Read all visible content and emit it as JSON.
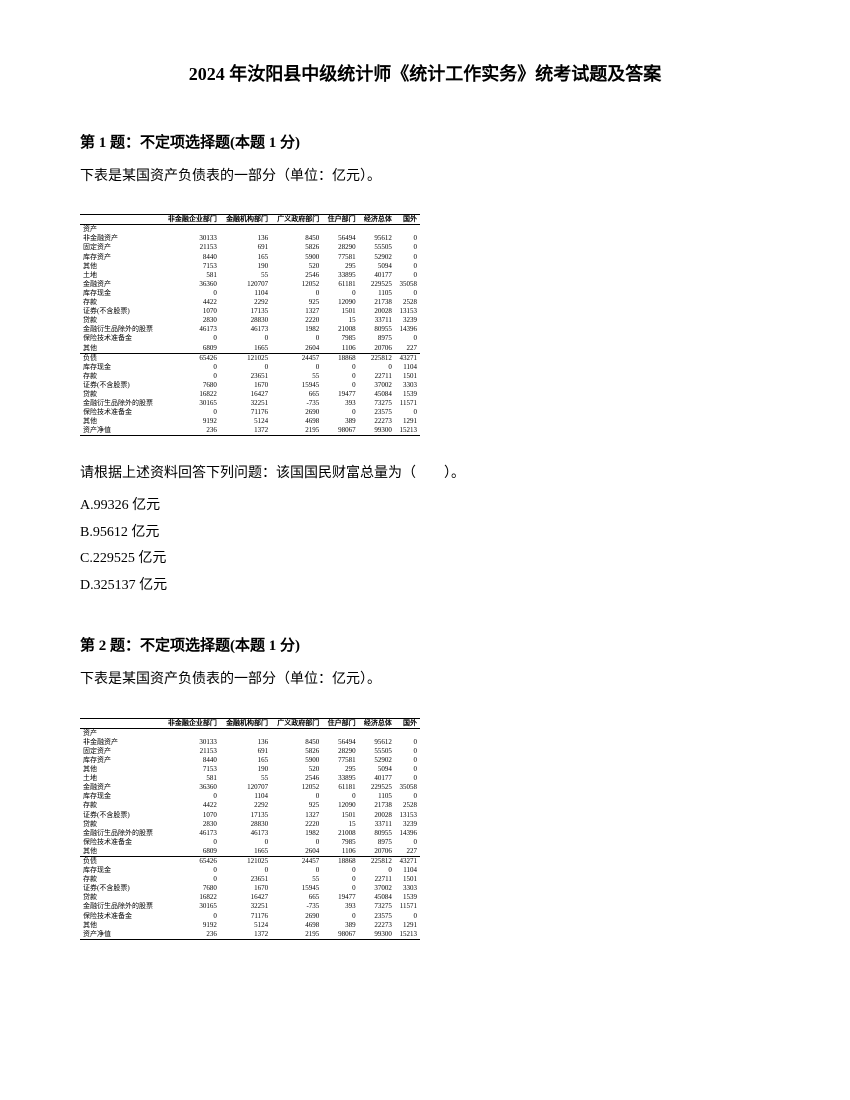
{
  "title": "2024 年汝阳县中级统计师《统计工作实务》统考试题及答案",
  "q1": {
    "header": "第 1 题：不定项选择题(本题 1 分)",
    "text": "下表是某国资产负债表的一部分（单位：亿元）。",
    "prompt": "请根据上述资料回答下列问题：该国国民财富总量为（　　）。",
    "optA": "A.99326 亿元",
    "optB": "B.95612 亿元",
    "optC": "C.229525 亿元",
    "optD": "D.325137 亿元"
  },
  "q2": {
    "header": "第 2 题：不定项选择题(本题 1 分)",
    "text": "下表是某国资产负债表的一部分（单位：亿元）。"
  },
  "table": {
    "headers": [
      "",
      "非金融企业部门",
      "金融机构部门",
      "广义政府部门",
      "住户部门",
      "经济总体",
      "国外"
    ],
    "rows": [
      [
        "资产",
        "",
        "",
        "",
        "",
        "",
        ""
      ],
      [
        "非金融资产",
        "30133",
        "136",
        "8450",
        "56494",
        "95612",
        "0"
      ],
      [
        "固定资产",
        "21153",
        "691",
        "5826",
        "28290",
        "55505",
        "0"
      ],
      [
        "库存资产",
        "8440",
        "165",
        "5900",
        "77581",
        "52902",
        "0"
      ],
      [
        "其他",
        "7153",
        "190",
        "520",
        "295",
        "5094",
        "0"
      ],
      [
        "土地",
        "581",
        "55",
        "2546",
        "33895",
        "40177",
        "0"
      ],
      [
        "金融资产",
        "36360",
        "120707",
        "12052",
        "61181",
        "229525",
        "35058"
      ],
      [
        "库存现金",
        "0",
        "1104",
        "0",
        "0",
        "1105",
        "0"
      ],
      [
        "存款",
        "4422",
        "2292",
        "925",
        "12090",
        "21738",
        "2528"
      ],
      [
        "证券(不含股票)",
        "1070",
        "17135",
        "1327",
        "1501",
        "20028",
        "13153"
      ],
      [
        "贷款",
        "2830",
        "28830",
        "2220",
        "15",
        "33711",
        "3239"
      ],
      [
        "金融衍生品除外的股票",
        "46173",
        "46173",
        "1982",
        "21008",
        "80955",
        "14396"
      ],
      [
        "保险技术准备金",
        "0",
        "0",
        "0",
        "7985",
        "8975",
        "0"
      ],
      [
        "其他",
        "6809",
        "1665",
        "2604",
        "1106",
        "20706",
        "227"
      ],
      [
        "负债",
        "65426",
        "121025",
        "24457",
        "18868",
        "225812",
        "43271"
      ],
      [
        "库存现金",
        "0",
        "0",
        "0",
        "0",
        "0",
        "1104"
      ],
      [
        "存款",
        "0",
        "23651",
        "55",
        "0",
        "22711",
        "1501"
      ],
      [
        "证券(不含股票)",
        "7680",
        "1670",
        "15945",
        "0",
        "37002",
        "3303"
      ],
      [
        "贷款",
        "16822",
        "16427",
        "665",
        "19477",
        "45084",
        "1539"
      ],
      [
        "金融衍生品除外的股票",
        "30165",
        "32251",
        "-735",
        "393",
        "73275",
        "11571"
      ],
      [
        "保险技术准备金",
        "0",
        "71176",
        "2690",
        "0",
        "23575",
        "0"
      ],
      [
        "其他",
        "9192",
        "5124",
        "4698",
        "389",
        "22273",
        "1291"
      ],
      [
        "资产净值",
        "236",
        "1372",
        "2195",
        "98067",
        "99300",
        "15213"
      ]
    ]
  }
}
